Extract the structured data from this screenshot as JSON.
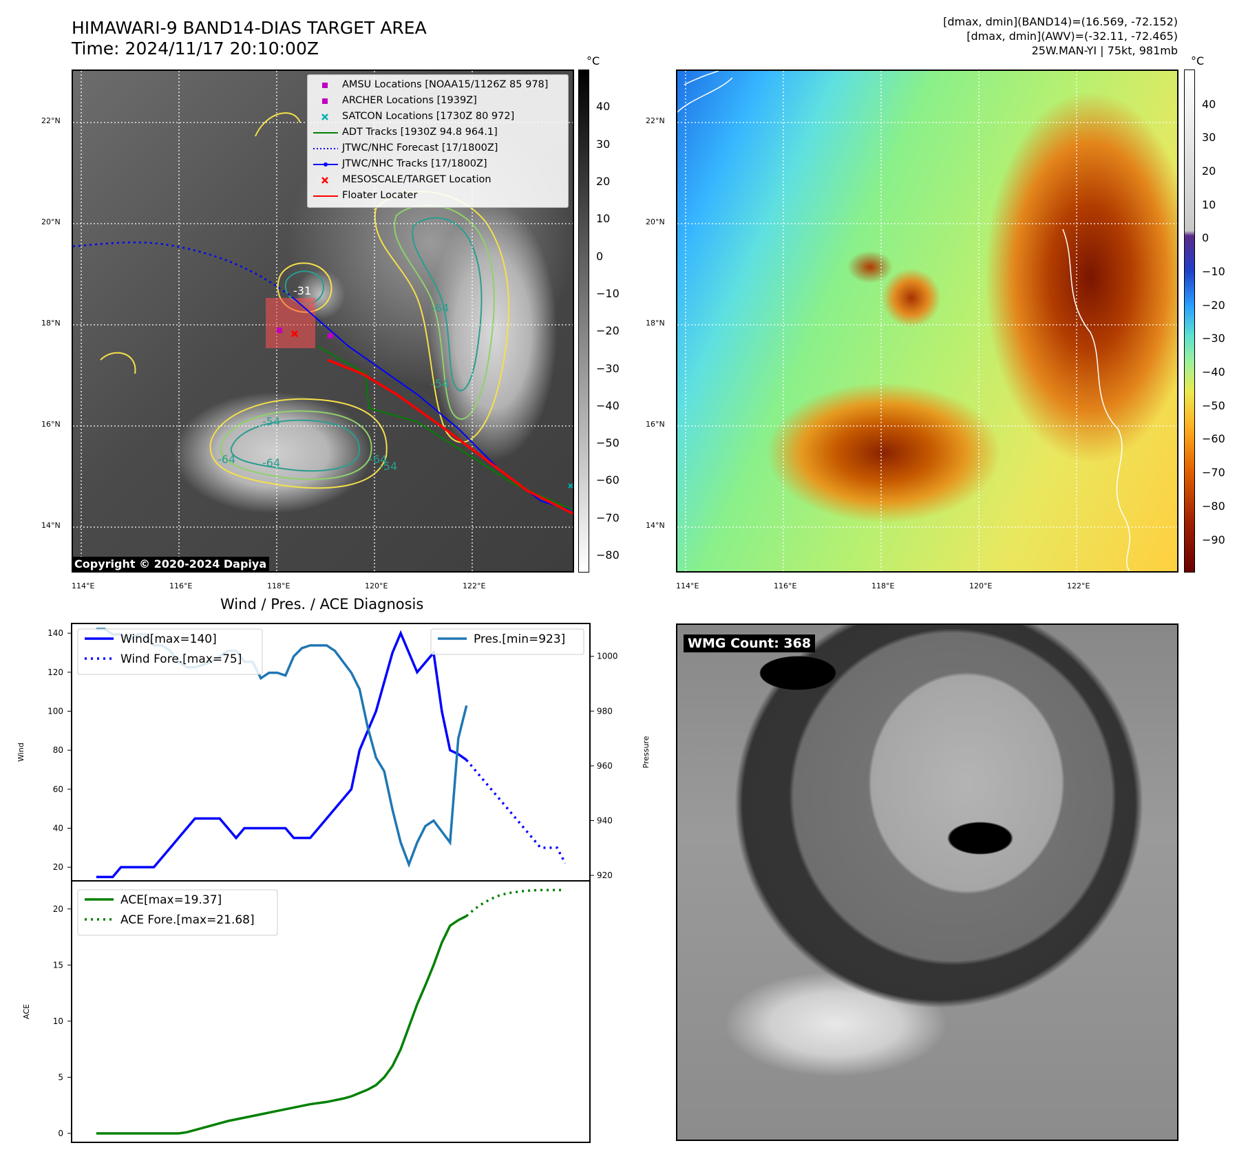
{
  "header": {
    "title_line1": "HIMAWARI-9 BAND14-DIAS TARGET AREA",
    "title_line2": "Time: 2024/11/17 20:10:00Z",
    "info_line1": "[dmax, dmin](BAND14)=(16.569, -72.152)",
    "info_line2": "[dmax, dmin](AWV)=(-32.11, -72.465)",
    "info_line3": "25W.MAN-YI | 75kt, 981mb"
  },
  "map": {
    "lon_ticks": [
      "114°E",
      "116°E",
      "118°E",
      "120°E",
      "122°E"
    ],
    "lat_ticks": [
      "22°N",
      "20°N",
      "18°N",
      "16°N",
      "14°N"
    ],
    "copyright": "Copyright © 2020-2024 Dapiya",
    "contour_labels": [
      "-54",
      "-64",
      "-64",
      "-54",
      "-64",
      "-54",
      "-64",
      "-31"
    ]
  },
  "colorbars": {
    "unit": "°C",
    "ir_ticks": [
      "40",
      "30",
      "20",
      "10",
      "0",
      "−10",
      "−20",
      "−30",
      "−40",
      "−50",
      "−60",
      "−70",
      "−80"
    ],
    "color_ticks": [
      "40",
      "30",
      "20",
      "10",
      "0",
      "−10",
      "−20",
      "−30",
      "−40",
      "−50",
      "−60",
      "−70",
      "−80",
      "−90"
    ]
  },
  "legend": {
    "items": [
      {
        "label": "AMSU Locations [NOAA15/1126Z 85 978]",
        "color": "#c000c0",
        "kind": "square"
      },
      {
        "label": "ARCHER Locations [1939Z]",
        "color": "#c000c0",
        "kind": "square"
      },
      {
        "label": "SATCON Locations [1730Z 80 972]",
        "color": "#00b0b0",
        "kind": "x"
      },
      {
        "label": "ADT Tracks [1930Z 94.8 964.1]",
        "color": "#008000",
        "kind": "line"
      },
      {
        "label": "JTWC/NHC Forecast [17/1800Z]",
        "color": "#0000ff",
        "kind": "dotted"
      },
      {
        "label": "JTWC/NHC Tracks [17/1800Z]",
        "color": "#0000ff",
        "kind": "line-dot"
      },
      {
        "label": "MESOSCALE/TARGET Location",
        "color": "#ff0000",
        "kind": "x"
      },
      {
        "label": "Floater Locater",
        "color": "#ff0000",
        "kind": "line"
      }
    ]
  },
  "wmg": {
    "label": "WMG Count: 368"
  },
  "chart_data": [
    {
      "type": "line",
      "title": "Wind / Pres. / ACE Diagnosis",
      "ylabel": "Wind",
      "ylabel_right": "Pressure",
      "ylim": [
        13,
        145
      ],
      "ylim_right": [
        918,
        1012
      ],
      "yticks": [
        20,
        40,
        60,
        80,
        100,
        120,
        140
      ],
      "yticks_right": [
        920,
        940,
        960,
        980,
        1000
      ],
      "legend_left": [
        "Wind[max=140]",
        "Wind Fore.[max=75]"
      ],
      "legend_right": [
        "Pres.[min=923]"
      ],
      "series": [
        {
          "name": "Wind[max=140]",
          "color": "#0000ff",
          "style": "solid",
          "x": [
            0,
            1,
            2,
            3,
            4,
            5,
            6,
            7,
            8,
            9,
            10,
            11,
            12,
            13,
            14,
            15,
            16,
            17,
            18,
            19,
            20,
            21,
            22,
            23,
            24,
            25,
            26,
            27,
            28,
            29,
            30,
            31,
            32,
            33,
            34
          ],
          "values": [
            15,
            15,
            15,
            20,
            20,
            20,
            20,
            20,
            25,
            30,
            35,
            40,
            45,
            45,
            45,
            45,
            40,
            35,
            40,
            40,
            40,
            40,
            40,
            40,
            35,
            35,
            35,
            40,
            45,
            50,
            55,
            60,
            80,
            90,
            100
          ]
        },
        {
          "name": "Wind Fore.[max=75]",
          "color": "#0000ff",
          "style": "dotted",
          "x": [
            45,
            46,
            47,
            48,
            49,
            50,
            51,
            52,
            53,
            54,
            55,
            56,
            57
          ],
          "values": [
            75,
            70,
            65,
            60,
            55,
            50,
            45,
            40,
            35,
            30,
            30,
            30,
            22
          ]
        },
        {
          "name": "Pres.[min=923]",
          "color": "#1f77b4",
          "style": "solid",
          "axis": "right",
          "x": [
            0,
            1,
            2,
            3,
            4,
            5,
            6,
            7,
            8,
            9,
            10,
            11,
            12,
            13,
            14,
            15,
            16,
            17,
            18,
            19,
            20,
            21,
            22,
            23,
            24,
            25,
            26,
            27,
            28,
            29,
            30,
            31,
            32,
            33,
            34,
            35,
            36,
            37,
            38,
            39,
            40,
            41,
            42,
            43,
            44,
            45
          ],
          "values": [
            1010,
            1010,
            1008,
            1008,
            1006,
            1008,
            1008,
            1004,
            1004,
            1002,
            998,
            996,
            996,
            997,
            998,
            1000,
            1002,
            1002,
            998,
            998,
            992,
            994,
            994,
            993,
            1000,
            1003,
            1004,
            1004,
            1004,
            1002,
            998,
            994,
            988,
            974,
            963,
            958,
            944,
            932,
            924,
            932,
            938,
            940,
            936,
            932,
            970,
            982
          ]
        }
      ],
      "wind_extra": {
        "x": [
          35,
          36,
          37,
          38,
          39,
          40,
          41,
          42,
          43,
          44,
          45
        ],
        "values": [
          115,
          130,
          140,
          130,
          120,
          125,
          130,
          100,
          80,
          78,
          75
        ]
      }
    },
    {
      "type": "line",
      "ylabel": "ACE",
      "ylim": [
        -0.8,
        22.5
      ],
      "yticks": [
        0,
        5,
        10,
        15,
        20
      ],
      "series": [
        {
          "name": "ACE[max=19.37]",
          "color": "#008000",
          "style": "solid",
          "x": [
            0,
            2,
            4,
            6,
            8,
            10,
            11,
            12,
            14,
            16,
            18,
            20,
            22,
            24,
            26,
            28,
            30,
            31,
            32,
            33,
            34,
            35,
            36,
            37,
            38,
            39,
            40,
            41,
            42,
            43,
            44,
            45
          ],
          "values": [
            0,
            0,
            0,
            0,
            0,
            0,
            0.1,
            0.3,
            0.7,
            1.1,
            1.4,
            1.7,
            2.0,
            2.3,
            2.6,
            2.8,
            3.1,
            3.3,
            3.6,
            3.9,
            4.3,
            5.0,
            6.0,
            7.5,
            9.5,
            11.5,
            13.2,
            15.0,
            17.0,
            18.5,
            19.0,
            19.37
          ]
        },
        {
          "name": "ACE Fore.[max=21.68]",
          "color": "#008000",
          "style": "dotted",
          "x": [
            45,
            46,
            47,
            48,
            49,
            50,
            51,
            52,
            53,
            54,
            55,
            56,
            57
          ],
          "values": [
            19.37,
            20.0,
            20.5,
            20.9,
            21.2,
            21.4,
            21.5,
            21.6,
            21.65,
            21.68,
            21.68,
            21.68,
            21.68
          ]
        }
      ]
    }
  ]
}
